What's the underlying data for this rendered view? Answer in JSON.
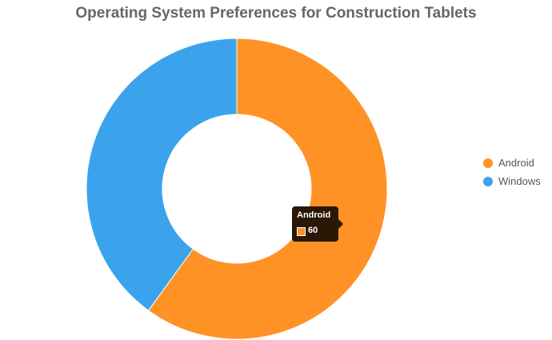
{
  "chart_data": {
    "type": "pie",
    "title": "Operating System Preferences for Construction Tablets",
    "categories": [
      "Android",
      "Windows"
    ],
    "values": [
      60,
      40
    ],
    "colors": [
      "#ff9224",
      "#3aa3ec"
    ],
    "donut": true,
    "legend_position": "right"
  },
  "tooltip": {
    "title": "Android",
    "value": "60",
    "color": "#ff9224"
  }
}
